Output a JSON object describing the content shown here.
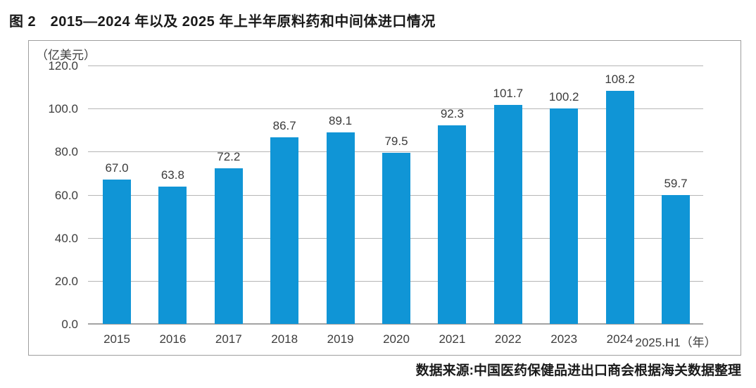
{
  "figure": {
    "title": "图 2　2015—2024 年以及 2025 年上半年原料药和中间体进口情况",
    "source_note": "数据来源:中国医药保健品进出口商会根据海关数据整理"
  },
  "chart_data": {
    "type": "bar",
    "title": "2015—2024 年以及 2025 年上半年原料药和中间体进口情况",
    "unit_label": "（亿美元）",
    "xlabel": "年",
    "ylabel": "亿美元",
    "categories": [
      "2015",
      "2016",
      "2017",
      "2018",
      "2019",
      "2020",
      "2021",
      "2022",
      "2023",
      "2024",
      "2025.H1（年）"
    ],
    "values": [
      67.0,
      63.8,
      72.2,
      86.7,
      89.1,
      79.5,
      92.3,
      101.7,
      100.2,
      108.2,
      59.7
    ],
    "value_labels": [
      "67.0",
      "63.8",
      "72.2",
      "86.7",
      "89.1",
      "79.5",
      "92.3",
      "101.7",
      "100.2",
      "108.2",
      "59.7"
    ],
    "y_ticks": [
      0.0,
      20.0,
      40.0,
      60.0,
      80.0,
      100.0,
      120.0
    ],
    "y_tick_labels": [
      "0.0",
      "20.0",
      "40.0",
      "60.0",
      "80.0",
      "100.0",
      "120.0"
    ],
    "ylim": [
      0,
      120
    ],
    "grid": true,
    "legend_position": "none",
    "bar_color": "#1095d6"
  }
}
